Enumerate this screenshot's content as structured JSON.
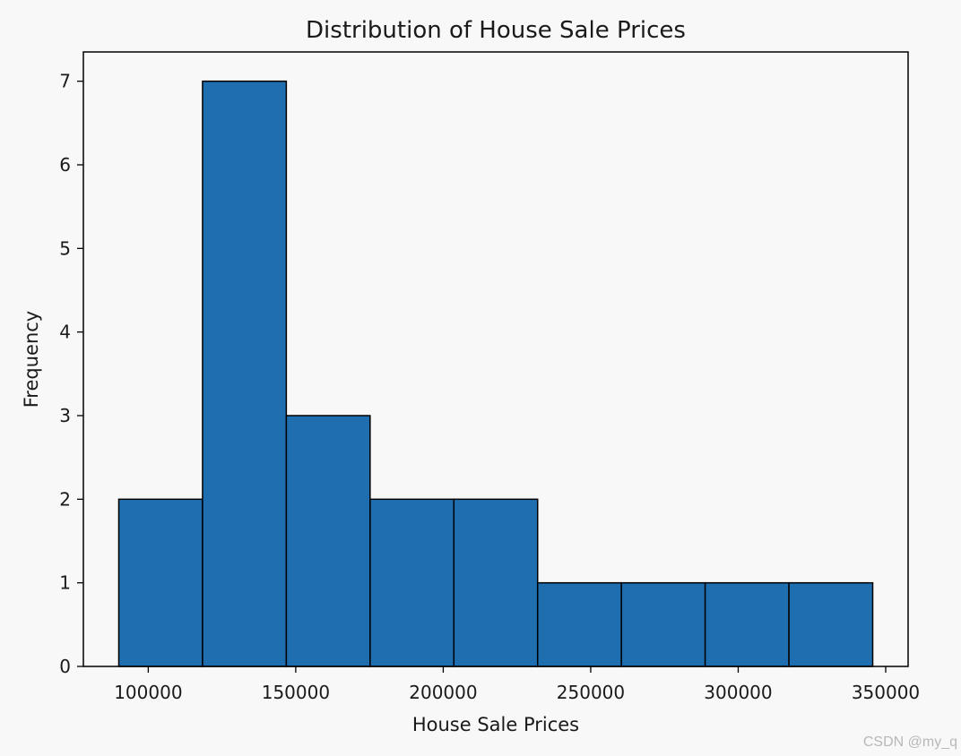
{
  "chart_data": {
    "type": "bar",
    "title": "Distribution of House Sale Prices",
    "xlabel": "House Sale Prices",
    "ylabel": "Frequency",
    "bin_edges": [
      90000,
      118400,
      146800,
      175200,
      203600,
      232000,
      260400,
      288800,
      317200,
      345600
    ],
    "values": [
      2,
      7,
      3,
      2,
      2,
      1,
      1,
      1,
      1
    ],
    "xlim": [
      78000,
      357600
    ],
    "ylim": [
      0,
      7.35
    ],
    "xticks": [
      100000,
      150000,
      200000,
      250000,
      300000,
      350000
    ],
    "yticks": [
      0,
      1,
      2,
      3,
      4,
      5,
      6,
      7
    ],
    "bar_color": "#1f6fb0",
    "edge_color": "#000000",
    "grid": false,
    "legend": "none"
  },
  "watermark": "CSDN @my_q"
}
